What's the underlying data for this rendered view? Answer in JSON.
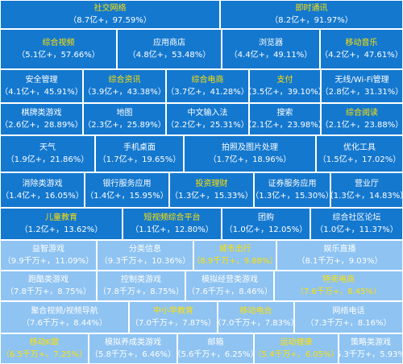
{
  "colors": {
    "dark_tile": "#1478cf",
    "light_tile": "#8ec3f2",
    "name_white": "#ffffff",
    "name_yellow": "#ffe100"
  },
  "tiles": [
    {
      "name": "社交网络",
      "value": "（8.7亿+，97.59%）",
      "shade": "dark",
      "name_color": "yellow"
    },
    {
      "name": "即时通讯",
      "value": "（8.2亿+，91.97%）",
      "shade": "dark",
      "name_color": "yellow"
    },
    {
      "name": "综合视频",
      "value": "（5.1亿+，57.66%）",
      "shade": "dark",
      "name_color": "yellow"
    },
    {
      "name": "应用商店",
      "value": "（4.8亿+，53.48%）",
      "shade": "dark",
      "name_color": "white"
    },
    {
      "name": "浏览器",
      "value": "（4.4亿+，49.11%）",
      "shade": "dark",
      "name_color": "white"
    },
    {
      "name": "移动音乐",
      "value": "（4.2亿+，47.61%）",
      "shade": "dark",
      "name_color": "yellow"
    },
    {
      "name": "安全管理",
      "value": "（4.1亿+，45.91%）",
      "shade": "dark",
      "name_color": "white"
    },
    {
      "name": "综合资讯",
      "value": "（3.9亿+，43.38%）",
      "shade": "dark",
      "name_color": "yellow"
    },
    {
      "name": "综合电商",
      "value": "（3.7亿+，41.28%）",
      "shade": "dark",
      "name_color": "yellow"
    },
    {
      "name": "支付",
      "value": "（3.5亿+，39.10%）",
      "shade": "dark",
      "name_color": "yellow"
    },
    {
      "name": "无线/Wi-Fi管理",
      "value": "（2.8亿+，31.31%）",
      "shade": "dark",
      "name_color": "white"
    },
    {
      "name": "棋牌类游戏",
      "value": "（2.6亿+，28.89%）",
      "shade": "dark",
      "name_color": "white"
    },
    {
      "name": "地图",
      "value": "（2.3亿+，25.89%）",
      "shade": "dark",
      "name_color": "white"
    },
    {
      "name": "中文输入法",
      "value": "（2.2亿+，25.31%）",
      "shade": "dark",
      "name_color": "white"
    },
    {
      "name": "搜索",
      "value": "（2.1亿+，23.98%）",
      "shade": "dark",
      "name_color": "white"
    },
    {
      "name": "综合阅读",
      "value": "（2.1亿+，23.88%）",
      "shade": "dark",
      "name_color": "yellow"
    },
    {
      "name": "天气",
      "value": "（1.9亿+，21.86%）",
      "shade": "dark",
      "name_color": "white"
    },
    {
      "name": "手机桌面",
      "value": "（1.7亿+，19.65%）",
      "shade": "dark",
      "name_color": "white"
    },
    {
      "name": "拍照及图片处理",
      "value": "（1.7亿+，18.96%）",
      "shade": "dark",
      "name_color": "white"
    },
    {
      "name": "优化工具",
      "value": "（1.5亿+，17.02%）",
      "shade": "dark",
      "name_color": "white"
    },
    {
      "name": "消除类游戏",
      "value": "（1.4亿+，16.05%）",
      "shade": "dark",
      "name_color": "white"
    },
    {
      "name": "银行服务应用",
      "value": "（1.4亿+，15.95%）",
      "shade": "dark",
      "name_color": "white"
    },
    {
      "name": "投资理财",
      "value": "（1.3亿+，15.33%）",
      "shade": "dark",
      "name_color": "yellow"
    },
    {
      "name": "证券服务应用",
      "value": "（1.3亿+，15.30%）",
      "shade": "dark",
      "name_color": "white"
    },
    {
      "name": "营业厅",
      "value": "（1.3亿+，14.83%）",
      "shade": "dark",
      "name_color": "white"
    },
    {
      "name": "儿童教育",
      "value": "（1.2亿+，13.62%）",
      "shade": "dark",
      "name_color": "yellow"
    },
    {
      "name": "短视频综合平台",
      "value": "（1.1亿+，12.80%）",
      "shade": "dark",
      "name_color": "yellow"
    },
    {
      "name": "团购",
      "value": "（1.0亿+，12.05%）",
      "shade": "dark",
      "name_color": "white"
    },
    {
      "name": "综合社区论坛",
      "value": "（1.0亿+，11.37%）",
      "shade": "dark",
      "name_color": "white"
    },
    {
      "name": "益智游戏",
      "value": "（9.9千万+，11.09%）",
      "shade": "light",
      "name_color": "white"
    },
    {
      "name": "分类信息",
      "value": "（9.3千万+，10.36%）",
      "shade": "light",
      "name_color": "white"
    },
    {
      "name": "城市出行",
      "value": "（8.9千万+，9.88%）",
      "shade": "light",
      "name_color": "yellow",
      "value_color": "yellow"
    },
    {
      "name": "娱乐直播",
      "value": "（8.1千万+，9.03%）",
      "shade": "light",
      "name_color": "white"
    },
    {
      "name": "跑酷类游戏",
      "value": "（7.8千万+，8.75%）",
      "shade": "light",
      "name_color": "white"
    },
    {
      "name": "控制类游戏",
      "value": "（7.8千万+，8.75%）",
      "shade": "light",
      "name_color": "white"
    },
    {
      "name": "模拟经营类游戏",
      "value": "（7.6千万+，8.46%）",
      "shade": "light",
      "name_color": "white"
    },
    {
      "name": "特卖电商",
      "value": "（7.6千万+，8.45%）",
      "shade": "light",
      "name_color": "yellow",
      "value_color": "yellow"
    },
    {
      "name": "聚合视频/视频导航",
      "value": "（7.6千万+，8.44%）",
      "shade": "light",
      "name_color": "white"
    },
    {
      "name": "中小学教育",
      "value": "（7.0千万+，7.87%）",
      "shade": "light",
      "name_color": "yellow"
    },
    {
      "name": "移动电台",
      "value": "（7.0千万+，7.83%）",
      "shade": "light",
      "name_color": "yellow"
    },
    {
      "name": "网络电话",
      "value": "（7.3千万+，8.16%）",
      "shade": "light",
      "name_color": "white"
    },
    {
      "name": "移动K歌",
      "value": "（6.5千万+，7.25%）",
      "shade": "light",
      "name_color": "yellow",
      "value_color": "yellow"
    },
    {
      "name": "模拟养成类游戏",
      "value": "（5.8千万+，6.46%）",
      "shade": "light",
      "name_color": "white"
    },
    {
      "name": "邮箱",
      "value": "（5.6千万+，6.25%）",
      "shade": "light",
      "name_color": "white"
    },
    {
      "name": "运动健康",
      "value": "（5.4千万+，6.05%）",
      "shade": "light",
      "name_color": "yellow",
      "value_color": "yellow"
    },
    {
      "name": "策略类游戏",
      "value": "（5.3千万+，5.93%）",
      "shade": "light",
      "name_color": "white"
    }
  ]
}
